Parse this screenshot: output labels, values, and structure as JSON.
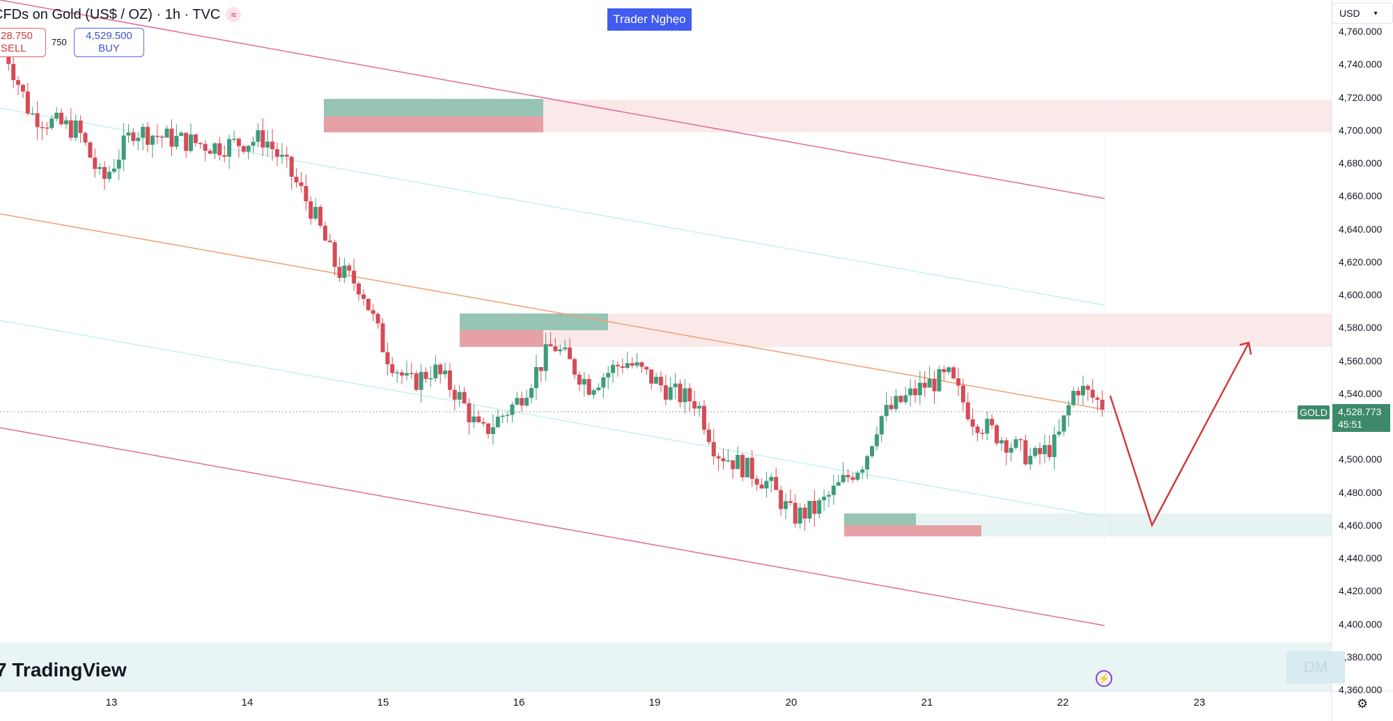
{
  "header": {
    "title": "CFDs on Gold (US$ / OZ) · 1h · TVC",
    "indicator_icon": "waves-icon"
  },
  "trade": {
    "sell_price": "28.750",
    "sell_label": "SELL",
    "spread": "750",
    "buy_price": "4,529.500",
    "buy_label": "BUY"
  },
  "brand_badge": "Trader Nghẹo",
  "currency": {
    "value": "USD",
    "icon": "chevron-down-icon"
  },
  "price_scale": {
    "ticks": [
      "4,760.000",
      "4,740.000",
      "4,720.000",
      "4,700.000",
      "4,680.000",
      "4,660.000",
      "4,640.000",
      "4,620.000",
      "4,600.000",
      "4,580.000",
      "4,560.000",
      "4,540.000",
      "4,520.000",
      "4,500.000",
      "4,480.000",
      "4,460.000",
      "4,440.000",
      "4,420.000",
      "4,400.000",
      "4,380.000",
      "4,360.000"
    ],
    "symbol_label": "GOLD",
    "last_price": "4,528.773",
    "countdown": "45:51"
  },
  "time_scale": {
    "ticks": [
      "13",
      "14",
      "15",
      "16",
      "19",
      "20",
      "21",
      "22",
      "23"
    ]
  },
  "watermark": "TradingView",
  "watermark_logo": "tradingview-logo-icon",
  "dm_label": "DM",
  "bolt_icon": "lightning-icon",
  "settings_icon": "gear-icon",
  "colors": {
    "up": "#3d9c7a",
    "down": "#d64b56",
    "channel": "#e06c97",
    "mid_channel": "#c7f0f0",
    "orange_line": "#f0a072",
    "projection": "#d33a3a",
    "supply_zone": "#fbe9ea",
    "demand_zone": "#e7f3f3"
  },
  "chart_data": {
    "type": "candlestick",
    "symbol": "GOLD",
    "timeframe": "1h",
    "y_range": [
      4360,
      4770
    ],
    "x_categories": [
      "13",
      "14",
      "15",
      "16",
      "19",
      "20",
      "21",
      "22",
      "23"
    ],
    "last_price": 4528.773,
    "zones": [
      {
        "kind": "supply",
        "from": 4698,
        "to": 4718
      },
      {
        "kind": "supply",
        "from": 4568,
        "to": 4588
      },
      {
        "kind": "demand",
        "from": 4454,
        "to": 4466
      }
    ],
    "projection_path": [
      4537,
      4460,
      4572
    ]
  }
}
